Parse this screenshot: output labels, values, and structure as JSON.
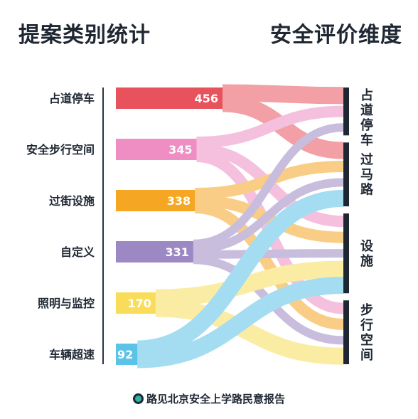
{
  "header": {
    "left_title": "提案类别统计",
    "right_title": "安全评价维度"
  },
  "footer": {
    "text": "路见北京安全上学路民意报告"
  },
  "chart_data": {
    "type": "sankey",
    "title": "",
    "sources": [
      {
        "label": "占道停车",
        "value": 456,
        "color": "#e8525d"
      },
      {
        "label": "安全步行空间",
        "value": 345,
        "color": "#ee8ec2"
      },
      {
        "label": "过街设施",
        "value": 338,
        "color": "#f5a623"
      },
      {
        "label": "自定义",
        "value": 331,
        "color": "#9c88c2"
      },
      {
        "label": "照明与监控",
        "value": 170,
        "color": "#f9dd5a"
      },
      {
        "label": "车辆超速",
        "value": 92,
        "color": "#5bc3e6"
      }
    ],
    "targets": [
      {
        "label": "占道停车"
      },
      {
        "label": "过马路"
      },
      {
        "label": "设施"
      },
      {
        "label": "步行空间"
      }
    ],
    "links": [
      {
        "source": "占道停车",
        "target": "占道停车"
      },
      {
        "source": "占道停车",
        "target": "过马路"
      },
      {
        "source": "安全步行空间",
        "target": "占道停车"
      },
      {
        "source": "安全步行空间",
        "target": "设施"
      },
      {
        "source": "安全步行空间",
        "target": "步行空间"
      },
      {
        "source": "过街设施",
        "target": "过马路"
      },
      {
        "source": "过街设施",
        "target": "设施"
      },
      {
        "source": "过街设施",
        "target": "步行空间"
      },
      {
        "source": "自定义",
        "target": "占道停车"
      },
      {
        "source": "自定义",
        "target": "过马路"
      },
      {
        "source": "自定义",
        "target": "设施"
      },
      {
        "source": "自定义",
        "target": "步行空间"
      },
      {
        "source": "照明与监控",
        "target": "设施"
      },
      {
        "source": "照明与监控",
        "target": "步行空间"
      },
      {
        "source": "车辆超速",
        "target": "过马路"
      },
      {
        "source": "车辆超速",
        "target": "设施"
      }
    ]
  }
}
